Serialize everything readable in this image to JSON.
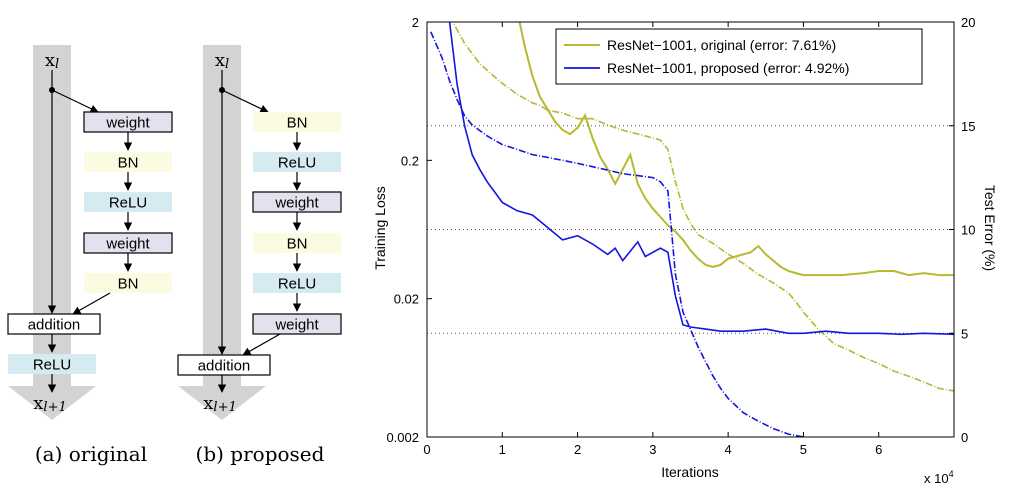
{
  "diagram_a": {
    "input_label": "x",
    "input_sub": "l",
    "output_label": "x",
    "output_sub": "l+1",
    "blocks": [
      "weight",
      "BN",
      "ReLU",
      "weight",
      "BN"
    ],
    "addition": "addition",
    "post": "ReLU",
    "caption": "(a) original"
  },
  "diagram_b": {
    "input_label": "x",
    "input_sub": "l",
    "output_label": "x",
    "output_sub": "l+1",
    "blocks": [
      "BN",
      "ReLU",
      "weight",
      "BN",
      "ReLU",
      "weight"
    ],
    "addition": "addition",
    "caption": "(b) proposed"
  },
  "colors": {
    "weight_fill": "#e4e0ee",
    "bn_fill": "#fbfbe2",
    "relu_fill": "#d6eaf1",
    "skip_gray": "#d3d3d3",
    "original": "#b8b831",
    "proposed": "#1515e0",
    "grid": "#555555"
  },
  "chart_data": {
    "type": "line",
    "xlabel": "Iterations",
    "x_multiplier": "x 10",
    "x_multiplier_exp": "4",
    "ylabel_left": "Training Loss",
    "ylabel_right": "Test Error (%)",
    "xlim": [
      0,
      7
    ],
    "xticks": [
      "0",
      "1",
      "2",
      "3",
      "4",
      "5",
      "6"
    ],
    "ylim_left": [
      0.002,
      2
    ],
    "y_left_scale": "log",
    "yticks_left": [
      "2",
      "0.2",
      "0.02",
      "0.002"
    ],
    "ylim_right": [
      0,
      20
    ],
    "yticks_right": [
      "20",
      "15",
      "10",
      "5",
      "0"
    ],
    "grid": "horizontal dotted at 15, 10, 5",
    "legend_position": "top-right",
    "legend": [
      "ResNet−1001, original (error: 7.61%)",
      "ResNet−1001, proposed (error: 4.92%)"
    ],
    "series": [
      {
        "name": "ResNet−1001, original (error: 7.61%)",
        "kind": "test error (solid)",
        "axis": "right",
        "x": [
          1.2,
          1.3,
          1.4,
          1.5,
          1.6,
          1.7,
          1.8,
          1.9,
          2.0,
          2.1,
          2.2,
          2.3,
          2.4,
          2.5,
          2.6,
          2.7,
          2.8,
          2.9,
          3.0,
          3.1,
          3.2,
          3.3,
          3.4,
          3.5,
          3.6,
          3.7,
          3.8,
          3.9,
          4.0,
          4.1,
          4.2,
          4.3,
          4.4,
          4.5,
          4.6,
          4.7,
          4.8,
          4.9,
          5.0,
          5.2,
          5.5,
          5.8,
          6.0,
          6.2,
          6.4,
          6.6,
          6.8,
          7.0
        ],
        "y": [
          20.5,
          18.8,
          17.4,
          16.4,
          15.8,
          15.2,
          14.8,
          14.6,
          14.9,
          15.5,
          14.4,
          13.5,
          12.9,
          12.2,
          12.9,
          13.6,
          12.2,
          11.5,
          11.0,
          10.6,
          10.2,
          9.9,
          9.5,
          9.0,
          8.6,
          8.3,
          8.2,
          8.3,
          8.6,
          8.7,
          8.8,
          8.9,
          9.2,
          8.8,
          8.5,
          8.2,
          8.0,
          7.9,
          7.8,
          7.8,
          7.8,
          7.9,
          8.0,
          8.0,
          7.8,
          7.9,
          7.8,
          7.8
        ]
      },
      {
        "name": "ResNet−1001, original (error: 7.61%)",
        "kind": "training loss (dashed)",
        "axis": "left",
        "x": [
          0.3,
          0.5,
          0.7,
          0.9,
          1.0,
          1.2,
          1.4,
          1.5,
          1.6,
          1.8,
          2.0,
          2.2,
          2.4,
          2.6,
          2.8,
          3.0,
          3.1,
          3.2,
          3.3,
          3.4,
          3.5,
          3.6,
          3.8,
          4.0,
          4.2,
          4.4,
          4.6,
          4.8,
          4.9,
          5.0,
          5.2,
          5.4,
          5.6,
          5.8,
          6.0,
          6.2,
          6.4,
          6.6,
          6.8,
          7.0
        ],
        "y": [
          2.2,
          1.4,
          1.0,
          0.8,
          0.72,
          0.6,
          0.52,
          0.5,
          0.46,
          0.44,
          0.4,
          0.4,
          0.36,
          0.33,
          0.31,
          0.29,
          0.28,
          0.24,
          0.14,
          0.09,
          0.07,
          0.058,
          0.05,
          0.042,
          0.036,
          0.03,
          0.026,
          0.022,
          0.019,
          0.016,
          0.012,
          0.0095,
          0.0085,
          0.0075,
          0.0068,
          0.006,
          0.0055,
          0.005,
          0.0045,
          0.0043
        ]
      },
      {
        "name": "ResNet−1001, proposed (error: 4.92%)",
        "kind": "test error (solid)",
        "axis": "right",
        "x": [
          0.3,
          0.4,
          0.5,
          0.6,
          0.7,
          0.8,
          0.9,
          1.0,
          1.2,
          1.4,
          1.6,
          1.8,
          2.0,
          2.2,
          2.4,
          2.5,
          2.6,
          2.8,
          2.9,
          3.1,
          3.2,
          3.3,
          3.4,
          3.5,
          3.7,
          3.9,
          4.2,
          4.5,
          4.8,
          5.0,
          5.3,
          5.6,
          6.0,
          6.3,
          6.6,
          7.0
        ],
        "y": [
          20.0,
          17.0,
          15.0,
          13.6,
          12.9,
          12.3,
          11.8,
          11.3,
          10.9,
          10.7,
          10.1,
          9.5,
          9.7,
          9.3,
          8.8,
          9.1,
          8.5,
          9.4,
          8.7,
          9.1,
          8.9,
          6.8,
          5.4,
          5.3,
          5.2,
          5.1,
          5.1,
          5.2,
          5.0,
          5.0,
          5.1,
          5.0,
          5.0,
          4.95,
          5.0,
          4.95
        ]
      },
      {
        "name": "ResNet−1001, proposed (error: 4.92%)",
        "kind": "training loss (dashed)",
        "axis": "left",
        "x": [
          0.05,
          0.2,
          0.3,
          0.4,
          0.5,
          0.6,
          0.8,
          1.0,
          1.2,
          1.4,
          1.6,
          1.8,
          2.0,
          2.2,
          2.4,
          2.6,
          2.8,
          3.0,
          3.1,
          3.2,
          3.25,
          3.3,
          3.4,
          3.5,
          3.6,
          3.7,
          3.8,
          3.9,
          4.0,
          4.2,
          4.4,
          4.6,
          4.8,
          5.0
        ],
        "y": [
          1.7,
          1.1,
          0.75,
          0.55,
          0.42,
          0.36,
          0.3,
          0.26,
          0.24,
          0.22,
          0.21,
          0.2,
          0.19,
          0.18,
          0.17,
          0.16,
          0.155,
          0.15,
          0.14,
          0.12,
          0.06,
          0.03,
          0.016,
          0.012,
          0.009,
          0.007,
          0.0055,
          0.0045,
          0.0038,
          0.003,
          0.0026,
          0.0023,
          0.0021,
          0.002
        ]
      }
    ]
  }
}
